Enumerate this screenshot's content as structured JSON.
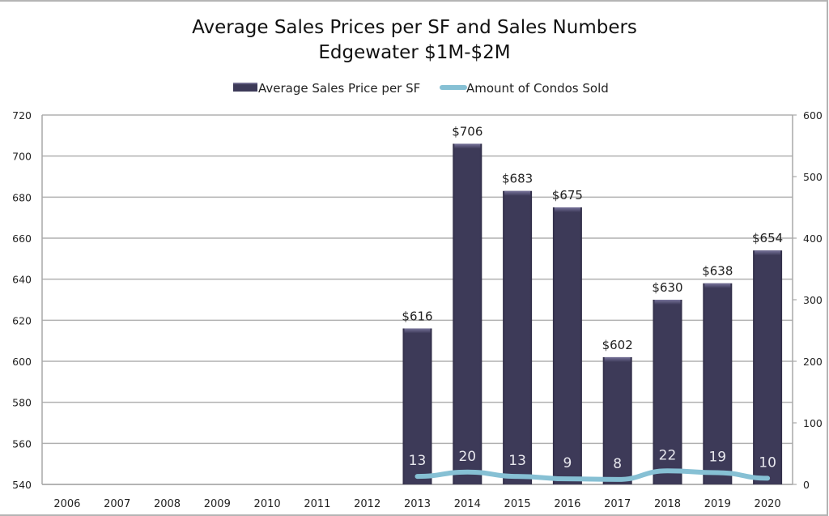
{
  "chart_data": {
    "type": "bar",
    "title": "Average Sales Prices per SF and Sales Numbers",
    "subtitle": "Edgewater $1M-$2M",
    "categories": [
      "2006",
      "2007",
      "2008",
      "2009",
      "2010",
      "2011",
      "2012",
      "2013",
      "2014",
      "2015",
      "2016",
      "2017",
      "2018",
      "2019",
      "2020"
    ],
    "series": [
      {
        "name": "Average Sales Price per SF",
        "type": "bar",
        "axis": "left",
        "color": "#3d3a58",
        "values": [
          null,
          null,
          null,
          null,
          null,
          null,
          null,
          616,
          706,
          683,
          675,
          602,
          630,
          638,
          654
        ],
        "labels": [
          "",
          "",
          "",
          "",
          "",
          "",
          "",
          "$616",
          "$706",
          "$683",
          "$675",
          "$602",
          "$630",
          "$638",
          "$654"
        ]
      },
      {
        "name": "Amount of Condos Sold",
        "type": "line",
        "axis": "right",
        "color": "#86c0d4",
        "values": [
          null,
          null,
          null,
          null,
          null,
          null,
          null,
          13,
          20,
          13,
          9,
          8,
          22,
          19,
          10
        ],
        "labels": [
          "",
          "",
          "",
          "",
          "",
          "",
          "",
          "13",
          "20",
          "13",
          "9",
          "8",
          "22",
          "19",
          "10"
        ]
      }
    ],
    "y_left": {
      "min": 540,
      "max": 720,
      "step": 20,
      "ticks": [
        "540",
        "560",
        "580",
        "600",
        "620",
        "640",
        "660",
        "680",
        "700",
        "720"
      ]
    },
    "y_right": {
      "min": 0,
      "max": 600,
      "step": 100,
      "ticks": [
        "0",
        "100",
        "200",
        "300",
        "400",
        "500",
        "600"
      ]
    },
    "xlabel": "",
    "ylabel": "",
    "grid": true,
    "legend": "top-center"
  }
}
